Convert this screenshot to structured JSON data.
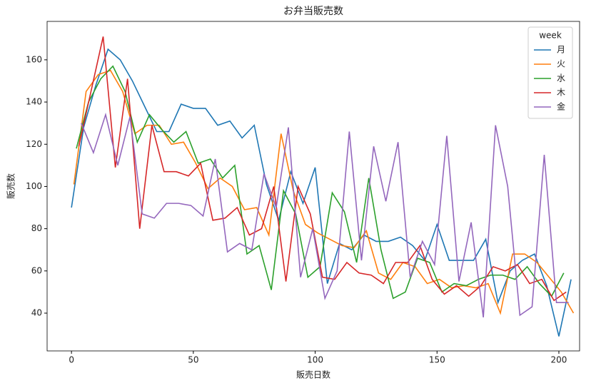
{
  "chart_data": {
    "type": "line",
    "title": "お弁当販売数",
    "x_label": "販売日数",
    "y_label": "販売数",
    "legend_title": "week",
    "legend": "upper right",
    "xlim": [
      -10,
      208.5
    ],
    "xticks": [
      0,
      50,
      100,
      150,
      200
    ],
    "ylim": [
      22.1,
      178.2
    ],
    "yticks": [
      40,
      60,
      80,
      100,
      120,
      140,
      160
    ],
    "series": [
      {
        "name": "月",
        "color": "#1f77b4",
        "x": [
          0,
          5,
          10,
          15,
          20,
          25,
          30,
          35,
          40,
          45,
          50,
          55,
          60,
          65,
          70,
          75,
          80,
          85,
          90,
          95,
          100,
          105,
          110,
          115,
          120,
          125,
          130,
          135,
          140,
          145,
          150,
          155,
          160,
          165,
          170,
          175,
          180,
          185,
          190,
          195,
          200,
          205
        ],
        "values": [
          90,
          128,
          148,
          165,
          160,
          150,
          138,
          126,
          126,
          139,
          137,
          137,
          129,
          131,
          123,
          129,
          101,
          84,
          107,
          92,
          109,
          54,
          73,
          70,
          77,
          74,
          74,
          76,
          72,
          65,
          82,
          65,
          65,
          65,
          75,
          45,
          60,
          65,
          68,
          53,
          29,
          56
        ]
      },
      {
        "name": "火",
        "color": "#ff7f0e",
        "x": [
          1,
          6,
          11,
          16,
          21,
          26,
          31,
          36,
          41,
          46,
          51,
          56,
          61,
          66,
          71,
          76,
          81,
          86,
          91,
          96,
          101,
          106,
          111,
          116,
          121,
          126,
          131,
          136,
          141,
          146,
          151,
          156,
          161,
          166,
          171,
          176,
          181,
          186,
          191,
          196,
          201,
          206
        ],
        "values": [
          101,
          145,
          153,
          155,
          145,
          125,
          129,
          129,
          120,
          121,
          111,
          99,
          104,
          100,
          89,
          90,
          77,
          125,
          98,
          82,
          78,
          75,
          72,
          71,
          79,
          59,
          56,
          64,
          62,
          54,
          56,
          52,
          53,
          52,
          54,
          40,
          68,
          68,
          64,
          57,
          50,
          40
        ]
      },
      {
        "name": "水",
        "color": "#2ca02c",
        "x": [
          2,
          7,
          12,
          17,
          22,
          27,
          32,
          37,
          42,
          47,
          52,
          57,
          62,
          67,
          72,
          77,
          82,
          87,
          92,
          97,
          102,
          107,
          112,
          117,
          122,
          127,
          132,
          137,
          142,
          147,
          152,
          157,
          162,
          167,
          172,
          177,
          182,
          187,
          192,
          197,
          202
        ],
        "values": [
          118,
          140,
          151,
          157,
          145,
          121,
          134,
          127,
          121,
          126,
          111,
          113,
          104,
          110,
          68,
          72,
          51,
          98,
          87,
          57,
          62,
          97,
          88,
          64,
          104,
          70,
          47,
          50,
          66,
          64,
          50,
          54,
          53,
          56,
          58,
          58,
          56,
          62,
          54,
          48,
          59
        ]
      },
      {
        "name": "木",
        "color": "#d62728",
        "x": [
          3,
          8,
          13,
          18,
          23,
          28,
          33,
          38,
          43,
          48,
          53,
          58,
          63,
          68,
          73,
          78,
          83,
          88,
          93,
          98,
          103,
          108,
          113,
          118,
          123,
          128,
          133,
          138,
          143,
          148,
          153,
          158,
          163,
          168,
          173,
          178,
          183,
          188,
          193,
          198,
          203
        ],
        "values": [
          119,
          145,
          171,
          109,
          151,
          80,
          129,
          107,
          107,
          105,
          111,
          84,
          85,
          90,
          77,
          80,
          100,
          55,
          100,
          87,
          57,
          56,
          64,
          59,
          58,
          54,
          64,
          64,
          72,
          56,
          49,
          53,
          48,
          53,
          62,
          60,
          63,
          54,
          56,
          46,
          50
        ]
      },
      {
        "name": "金",
        "color": "#9467bd",
        "x": [
          4,
          9,
          14,
          19,
          24,
          29,
          34,
          39,
          44,
          49,
          54,
          59,
          64,
          69,
          74,
          79,
          84,
          89,
          94,
          99,
          104,
          109,
          114,
          119,
          124,
          129,
          134,
          139,
          144,
          149,
          154,
          159,
          164,
          169,
          174,
          179,
          184,
          189,
          194,
          199,
          204
        ],
        "values": [
          130,
          116,
          134,
          110,
          133,
          87,
          85,
          92,
          92,
          91,
          86,
          113,
          69,
          73,
          70,
          106,
          90,
          128,
          57,
          80,
          47,
          60,
          126,
          65,
          119,
          93,
          121,
          57,
          74,
          63,
          124,
          55,
          83,
          38,
          129,
          100,
          39,
          43,
          115,
          45,
          45
        ]
      }
    ]
  }
}
